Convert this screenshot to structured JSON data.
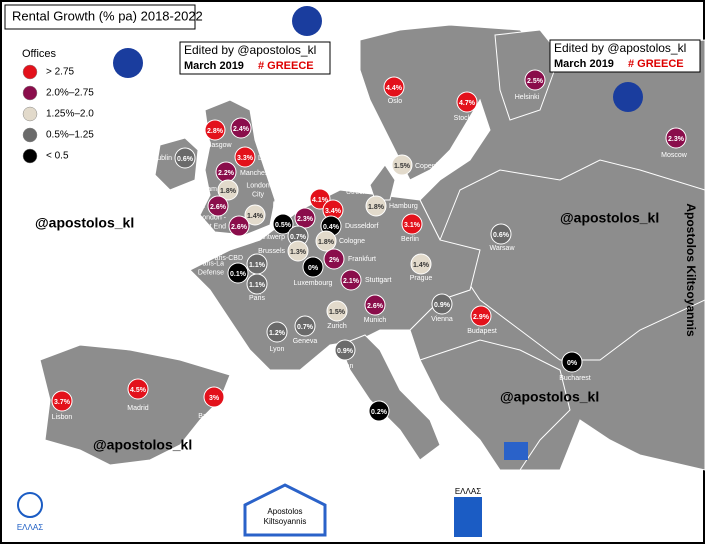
{
  "title": "Rental Growth (% pa) 2018-2022",
  "legend": {
    "title": "Offices",
    "items": [
      {
        "label": "> 2.75",
        "color": "#e3111b"
      },
      {
        "label": "2.0%–2.75",
        "color": "#8a0d4b"
      },
      {
        "label": "1.25%–2.0",
        "color": "#e2dacb"
      },
      {
        "label": "0.5%–1.25",
        "color": "#6a6a6a"
      },
      {
        "label": "< 0.5",
        "color": "#000000"
      }
    ]
  },
  "cities": [
    {
      "name": [
        "Oslo"
      ],
      "value": 4.4,
      "value_label": "4.4%",
      "color": "#e3111b"
    },
    {
      "name": [
        "Stockholm"
      ],
      "value": 4.7,
      "value_label": "4.7%",
      "color": "#e3111b"
    },
    {
      "name": [
        "Helsinki"
      ],
      "value": 2.5,
      "value_label": "2.5%",
      "color": "#8a0d4b"
    },
    {
      "name": [
        "Moscow"
      ],
      "value": 2.3,
      "value_label": "2.3%",
      "color": "#8a0d4b"
    },
    {
      "name": [
        "Copenhagen"
      ],
      "value": 1.5,
      "value_label": "1.5%",
      "color": "#e2dacb"
    },
    {
      "name": [
        "Edinburgh"
      ],
      "value": 2.4,
      "value_label": "2.4%",
      "color": "#8a0d4b"
    },
    {
      "name": [
        "Glasgow"
      ],
      "value": 2.8,
      "value_label": "2.8%",
      "color": "#e3111b"
    },
    {
      "name": [
        "Leeds"
      ],
      "value": 3.3,
      "value_label": "3.3%",
      "color": "#e3111b"
    },
    {
      "name": [
        "Manchester"
      ],
      "value": 2.2,
      "value_label": "2.2%",
      "color": "#8a0d4b"
    },
    {
      "name": [
        "Dublin"
      ],
      "value": 0.6,
      "value_label": "0.6%",
      "color": "#6a6a6a"
    },
    {
      "name": [
        "Birmingham"
      ],
      "value": 1.8,
      "value_label": "1.8%",
      "color": "#e2dacb"
    },
    {
      "name": [
        "London",
        "City"
      ],
      "value": 1.4,
      "value_label": "1.4%",
      "color": "#e2dacb"
    },
    {
      "name": [
        "Bristol"
      ],
      "value": 2.6,
      "value_label": "2.6%",
      "color": "#8a0d4b"
    },
    {
      "name": [
        "London -",
        "West End"
      ],
      "value": 2.6,
      "value_label": "2.6%",
      "color": "#8a0d4b"
    },
    {
      "name": [
        "Rotterdam"
      ],
      "value": 2.3,
      "value_label": "2.3%",
      "color": "#8a0d4b"
    },
    {
      "name": [
        "The",
        "Hague"
      ],
      "value": 0.5,
      "value_label": "0.5%",
      "color": "#000000"
    },
    {
      "name": [
        "Amsterdam"
      ],
      "value": 4.1,
      "value_label": "4.1%",
      "color": "#e3111b"
    },
    {
      "name": [
        "Utrecht"
      ],
      "value": 3.4,
      "value_label": "3.4%",
      "color": "#e3111b"
    },
    {
      "name": [
        "Antwerp"
      ],
      "value": 0.7,
      "value_label": "0.7%",
      "color": "#6a6a6a"
    },
    {
      "name": [
        "Dusseldorf"
      ],
      "value": 0.4,
      "value_label": "0.4%",
      "color": "#000000"
    },
    {
      "name": [
        "Hamburg"
      ],
      "value": 1.8,
      "value_label": "1.8%",
      "color": "#e2dacb"
    },
    {
      "name": [
        "Berlin"
      ],
      "value": 3.1,
      "value_label": "3.1%",
      "color": "#e3111b"
    },
    {
      "name": [
        "Warsaw"
      ],
      "value": 0.6,
      "value_label": "0.6%",
      "color": "#6a6a6a"
    },
    {
      "name": [
        "Cologne"
      ],
      "value": 1.8,
      "value_label": "1.8%",
      "color": "#e2dacb"
    },
    {
      "name": [
        "Brussels"
      ],
      "value": 1.3,
      "value_label": "1.3%",
      "color": "#e2dacb"
    },
    {
      "name": [
        "Frankfurt"
      ],
      "value": 2,
      "value_label": "2%",
      "color": "#8a0d4b"
    },
    {
      "name": [
        "Luxembourg"
      ],
      "value": 0,
      "value_label": "0%",
      "color": "#000000"
    },
    {
      "name": [
        "Paris-CBD"
      ],
      "value": 1.1,
      "value_label": "1.1%",
      "color": "#6a6a6a"
    },
    {
      "name": [
        "Paris-La",
        "Defense"
      ],
      "value": 0.1,
      "value_label": "0.1%",
      "color": "#000000"
    },
    {
      "name": [
        "Paris"
      ],
      "value": 1.1,
      "value_label": "1.1%",
      "color": "#6a6a6a"
    },
    {
      "name": [
        "Stuttgart"
      ],
      "value": 2.1,
      "value_label": "2.1%",
      "color": "#8a0d4b"
    },
    {
      "name": [
        "Prague"
      ],
      "value": 1.4,
      "value_label": "1.4%",
      "color": "#e2dacb"
    },
    {
      "name": [
        "Munich"
      ],
      "value": 2.6,
      "value_label": "2.6%",
      "color": "#8a0d4b"
    },
    {
      "name": [
        "Zurich"
      ],
      "value": 1.5,
      "value_label": "1.5%",
      "color": "#e2dacb"
    },
    {
      "name": [
        "Vienna"
      ],
      "value": 0.9,
      "value_label": "0.9%",
      "color": "#6a6a6a"
    },
    {
      "name": [
        "Budapest"
      ],
      "value": 2.9,
      "value_label": "2.9%",
      "color": "#e3111b"
    },
    {
      "name": [
        "Lyon"
      ],
      "value": 1.2,
      "value_label": "1.2%",
      "color": "#6a6a6a"
    },
    {
      "name": [
        "Geneva"
      ],
      "value": 0.7,
      "value_label": "0.7%",
      "color": "#6a6a6a"
    },
    {
      "name": [
        "Milan"
      ],
      "value": 0.9,
      "value_label": "0.9%",
      "color": "#6a6a6a"
    },
    {
      "name": [
        "Bucharest"
      ],
      "value": 0,
      "value_label": "0%",
      "color": "#000000"
    },
    {
      "name": [
        "Rome"
      ],
      "value": 0.2,
      "value_label": "0.2%",
      "color": "#000000"
    },
    {
      "name": [
        "Madrid"
      ],
      "value": 4.5,
      "value_label": "4.5%",
      "color": "#e3111b"
    },
    {
      "name": [
        "Barcelona"
      ],
      "value": 3,
      "value_label": "3%",
      "color": "#e3111b"
    },
    {
      "name": [
        "Lisbon"
      ],
      "value": 3.7,
      "value_label": "3.7%",
      "color": "#e3111b"
    }
  ],
  "edit_notes": [
    {
      "line1": "Edited by  @apostolos_kl",
      "line2": "March 2019",
      "tag": "# GREECE"
    },
    {
      "line1": "Edited by  @apostolos_kl",
      "line2": "March 2019",
      "tag": "# GREECE"
    }
  ],
  "watermarks": [
    "@apostolos_kl",
    "@apostolos_kl",
    "@apostolos_kl",
    "@apostolos_kl"
  ],
  "side_text": "Apostolos Kiltsoyannis",
  "logo_text": [
    "Apostolos",
    "Kiltsoyannis"
  ],
  "flag_texts": [
    "ΕΛΛΑΣ",
    "ΕΛΛΑΣ"
  ]
}
